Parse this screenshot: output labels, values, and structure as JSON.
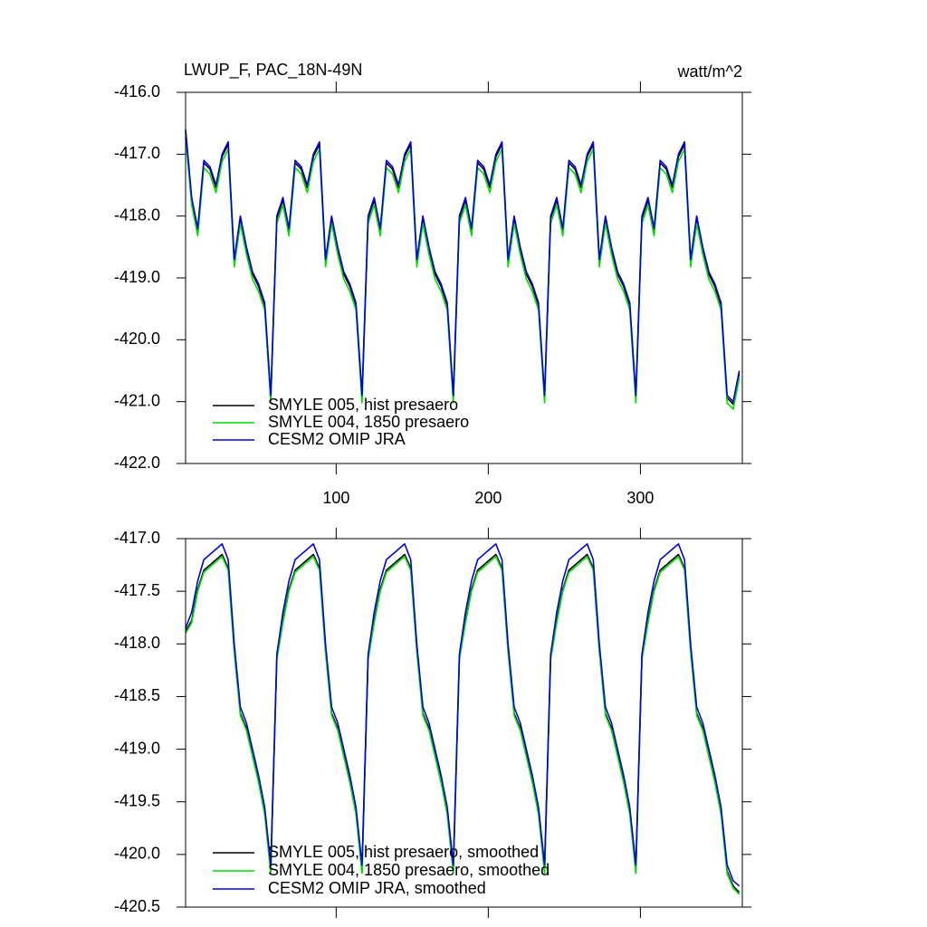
{
  "chart_data": [
    {
      "type": "line",
      "title": "LWUP_F, PAC_18N-49N",
      "units": "watt/m^2",
      "x": [
        1,
        5,
        9,
        13,
        17,
        21,
        25,
        29,
        33,
        37,
        41,
        45,
        49,
        53,
        57,
        61,
        65,
        69,
        73,
        77,
        81,
        85,
        89,
        93,
        97,
        101,
        105,
        109,
        113,
        117,
        121,
        125,
        129,
        133,
        137,
        141,
        145,
        149,
        153,
        157,
        161,
        165,
        169,
        173,
        177,
        181,
        185,
        189,
        193,
        197,
        201,
        205,
        209,
        213,
        217,
        221,
        225,
        229,
        233,
        237,
        241,
        245,
        249,
        253,
        257,
        261,
        265,
        269,
        273,
        277,
        281,
        285,
        289,
        293,
        297,
        301,
        305,
        309,
        313,
        317,
        321,
        325,
        329,
        333,
        337,
        341,
        345,
        349,
        353,
        357,
        361,
        365
      ],
      "xlim": [
        1,
        367
      ],
      "xticks": [
        100,
        200,
        300
      ],
      "ylim": [
        -422,
        -416
      ],
      "yticks": [
        {
          "value": -422,
          "label": "-422.0"
        },
        {
          "value": -421,
          "label": "-421.0"
        },
        {
          "value": -420,
          "label": "-420.0"
        },
        {
          "value": -419,
          "label": "-419.0"
        },
        {
          "value": -418,
          "label": "-418.0"
        },
        {
          "value": -417,
          "label": "-417.0"
        },
        {
          "value": -416,
          "label": "-416.0"
        }
      ],
      "series": [
        {
          "name": "SMYLE 005, hist presaero",
          "color": "#000000",
          "values": [
            -416.64,
            -417.74,
            -418.24,
            -417.14,
            -417.24,
            -417.54,
            -417.04,
            -416.84,
            -418.74,
            -418.04,
            -418.54,
            -418.94,
            -419.14,
            -419.44,
            -420.94,
            -418.04,
            -417.74,
            -418.24,
            -417.14,
            -417.24,
            -417.54,
            -417.04,
            -416.84,
            -418.74,
            -418.04,
            -418.54,
            -418.94,
            -419.14,
            -419.44,
            -420.94,
            -418.04,
            -417.74,
            -418.24,
            -417.14,
            -417.24,
            -417.54,
            -417.04,
            -416.84,
            -418.74,
            -418.04,
            -418.54,
            -418.94,
            -419.14,
            -419.44,
            -420.94,
            -418.04,
            -417.74,
            -418.24,
            -417.14,
            -417.24,
            -417.54,
            -417.04,
            -416.84,
            -418.74,
            -418.04,
            -418.54,
            -418.94,
            -419.14,
            -419.44,
            -420.94,
            -418.04,
            -417.74,
            -418.24,
            -417.14,
            -417.24,
            -417.54,
            -417.04,
            -416.84,
            -418.74,
            -418.04,
            -418.54,
            -418.94,
            -419.14,
            -419.44,
            -420.94,
            -418.04,
            -417.74,
            -418.24,
            -417.14,
            -417.24,
            -417.54,
            -417.04,
            -416.84,
            -418.74,
            -418.04,
            -418.54,
            -418.94,
            -419.14,
            -419.44,
            -420.94,
            -421.04,
            -420.54
          ]
        },
        {
          "name": "SMYLE 004, 1850 presaero",
          "color": "#00dd00",
          "values": [
            -416.72,
            -417.82,
            -418.32,
            -417.22,
            -417.32,
            -417.62,
            -417.12,
            -416.92,
            -418.82,
            -418.12,
            -418.62,
            -419.02,
            -419.22,
            -419.52,
            -421.02,
            -418.12,
            -417.82,
            -418.32,
            -417.22,
            -417.32,
            -417.62,
            -417.12,
            -416.92,
            -418.82,
            -418.12,
            -418.62,
            -419.02,
            -419.22,
            -419.52,
            -421.02,
            -418.12,
            -417.82,
            -418.32,
            -417.22,
            -417.32,
            -417.62,
            -417.12,
            -416.92,
            -418.82,
            -418.12,
            -418.62,
            -419.02,
            -419.22,
            -419.52,
            -421.02,
            -418.12,
            -417.82,
            -418.32,
            -417.22,
            -417.32,
            -417.62,
            -417.12,
            -416.92,
            -418.82,
            -418.12,
            -418.62,
            -419.02,
            -419.22,
            -419.52,
            -421.02,
            -418.12,
            -417.82,
            -418.32,
            -417.22,
            -417.32,
            -417.62,
            -417.12,
            -416.92,
            -418.82,
            -418.12,
            -418.62,
            -419.02,
            -419.22,
            -419.52,
            -421.02,
            -418.12,
            -417.82,
            -418.32,
            -417.22,
            -417.32,
            -417.62,
            -417.12,
            -416.92,
            -418.82,
            -418.12,
            -418.62,
            -419.02,
            -419.22,
            -419.52,
            -421.02,
            -421.12,
            -420.62
          ]
        },
        {
          "name": "CESM2 OMIP JRA",
          "color": "#0000dd",
          "values": [
            -416.6,
            -417.7,
            -418.2,
            -417.1,
            -417.2,
            -417.5,
            -417.0,
            -416.8,
            -418.7,
            -418.0,
            -418.5,
            -418.9,
            -419.1,
            -419.4,
            -420.9,
            -418.0,
            -417.7,
            -418.2,
            -417.1,
            -417.2,
            -417.5,
            -417.0,
            -416.8,
            -418.7,
            -418.0,
            -418.5,
            -418.9,
            -419.1,
            -419.4,
            -420.9,
            -418.0,
            -417.7,
            -418.2,
            -417.1,
            -417.2,
            -417.5,
            -417.0,
            -416.8,
            -418.7,
            -418.0,
            -418.5,
            -418.9,
            -419.1,
            -419.4,
            -420.9,
            -418.0,
            -417.7,
            -418.2,
            -417.1,
            -417.2,
            -417.5,
            -417.0,
            -416.8,
            -418.7,
            -418.0,
            -418.5,
            -418.9,
            -419.1,
            -419.4,
            -420.9,
            -418.0,
            -417.7,
            -418.2,
            -417.1,
            -417.2,
            -417.5,
            -417.0,
            -416.8,
            -418.7,
            -418.0,
            -418.5,
            -418.9,
            -419.1,
            -419.4,
            -420.9,
            -418.0,
            -417.7,
            -418.2,
            -417.1,
            -417.2,
            -417.5,
            -417.0,
            -416.8,
            -418.7,
            -418.0,
            -418.5,
            -418.9,
            -419.1,
            -419.4,
            -420.9,
            -421.0,
            -420.5
          ]
        }
      ]
    },
    {
      "type": "line",
      "x": [
        1,
        5,
        9,
        13,
        17,
        21,
        25,
        29,
        33,
        37,
        41,
        45,
        49,
        53,
        57,
        61,
        65,
        69,
        73,
        77,
        81,
        85,
        89,
        93,
        97,
        101,
        105,
        109,
        113,
        117,
        121,
        125,
        129,
        133,
        137,
        141,
        145,
        149,
        153,
        157,
        161,
        165,
        169,
        173,
        177,
        181,
        185,
        189,
        193,
        197,
        201,
        205,
        209,
        213,
        217,
        221,
        225,
        229,
        233,
        237,
        241,
        245,
        249,
        253,
        257,
        261,
        265,
        269,
        273,
        277,
        281,
        285,
        289,
        293,
        297,
        301,
        305,
        309,
        313,
        317,
        321,
        325,
        329,
        333,
        337,
        341,
        345,
        349,
        353,
        357,
        361,
        365
      ],
      "xlim": [
        1,
        367
      ],
      "xticks": [
        100,
        200,
        300
      ],
      "ylim": [
        -420.5,
        -417.0
      ],
      "yticks": [
        -420.5,
        {
          "value": -420,
          "label": "-420.0"
        },
        -419.5,
        {
          "value": -419,
          "label": "-419.0"
        },
        -418.5,
        {
          "value": -418,
          "label": "-418.0"
        },
        -417.5,
        {
          "value": -417,
          "label": "-417.0"
        }
      ],
      "series": [
        {
          "name": "SMYLE 005, hist presaero, smoothed",
          "color": "#000000",
          "values": [
            -417.88,
            -417.78,
            -417.48,
            -417.3,
            -417.25,
            -417.2,
            -417.15,
            -417.28,
            -418.06,
            -418.66,
            -418.8,
            -419.05,
            -419.3,
            -419.6,
            -420.16,
            -418.13,
            -417.78,
            -417.48,
            -417.3,
            -417.25,
            -417.2,
            -417.15,
            -417.28,
            -418.06,
            -418.66,
            -418.8,
            -419.05,
            -419.3,
            -419.6,
            -420.16,
            -418.13,
            -417.78,
            -417.48,
            -417.3,
            -417.25,
            -417.2,
            -417.15,
            -417.28,
            -418.06,
            -418.66,
            -418.8,
            -419.05,
            -419.3,
            -419.6,
            -420.16,
            -418.13,
            -417.78,
            -417.48,
            -417.3,
            -417.25,
            -417.2,
            -417.15,
            -417.28,
            -418.06,
            -418.66,
            -418.8,
            -419.05,
            -419.3,
            -419.6,
            -420.16,
            -418.13,
            -417.78,
            -417.48,
            -417.3,
            -417.25,
            -417.2,
            -417.15,
            -417.28,
            -418.06,
            -418.66,
            -418.8,
            -419.05,
            -419.3,
            -419.6,
            -420.16,
            -418.13,
            -417.78,
            -417.48,
            -417.3,
            -417.25,
            -417.2,
            -417.15,
            -417.28,
            -418.06,
            -418.66,
            -418.8,
            -419.05,
            -419.3,
            -419.6,
            -420.16,
            -420.3,
            -420.36
          ]
        },
        {
          "name": "SMYLE 004, 1850 presaero, smoothed",
          "color": "#00dd00",
          "values": [
            -417.9,
            -417.8,
            -417.5,
            -417.32,
            -417.27,
            -417.22,
            -417.17,
            -417.3,
            -418.08,
            -418.68,
            -418.82,
            -419.07,
            -419.32,
            -419.62,
            -420.18,
            -418.15,
            -417.8,
            -417.5,
            -417.32,
            -417.27,
            -417.22,
            -417.17,
            -417.3,
            -418.08,
            -418.68,
            -418.82,
            -419.07,
            -419.32,
            -419.62,
            -420.18,
            -418.15,
            -417.8,
            -417.5,
            -417.32,
            -417.27,
            -417.22,
            -417.17,
            -417.3,
            -418.08,
            -418.68,
            -418.82,
            -419.07,
            -419.32,
            -419.62,
            -420.18,
            -418.15,
            -417.8,
            -417.5,
            -417.32,
            -417.27,
            -417.22,
            -417.17,
            -417.3,
            -418.08,
            -418.68,
            -418.82,
            -419.07,
            -419.32,
            -419.62,
            -420.18,
            -418.15,
            -417.8,
            -417.5,
            -417.32,
            -417.27,
            -417.22,
            -417.17,
            -417.3,
            -418.08,
            -418.68,
            -418.82,
            -419.07,
            -419.32,
            -419.62,
            -420.18,
            -418.15,
            -417.8,
            -417.5,
            -417.32,
            -417.27,
            -417.22,
            -417.17,
            -417.3,
            -418.08,
            -418.68,
            -418.82,
            -419.07,
            -419.32,
            -419.62,
            -420.18,
            -420.32,
            -420.38
          ]
        },
        {
          "name": "CESM2 OMIP JRA, smoothed",
          "color": "#0000dd",
          "values": [
            -417.85,
            -417.7,
            -417.4,
            -417.2,
            -417.15,
            -417.1,
            -417.05,
            -417.2,
            -418.0,
            -418.6,
            -418.75,
            -419.0,
            -419.25,
            -419.55,
            -420.1,
            -418.1,
            -417.7,
            -417.4,
            -417.2,
            -417.15,
            -417.1,
            -417.05,
            -417.2,
            -418.0,
            -418.6,
            -418.75,
            -419.0,
            -419.25,
            -419.55,
            -420.1,
            -418.1,
            -417.7,
            -417.4,
            -417.2,
            -417.15,
            -417.1,
            -417.05,
            -417.2,
            -418.0,
            -418.6,
            -418.75,
            -419.0,
            -419.25,
            -419.55,
            -420.1,
            -418.1,
            -417.7,
            -417.4,
            -417.2,
            -417.15,
            -417.1,
            -417.05,
            -417.2,
            -418.0,
            -418.6,
            -418.75,
            -419.0,
            -419.25,
            -419.55,
            -420.1,
            -418.1,
            -417.7,
            -417.4,
            -417.2,
            -417.15,
            -417.1,
            -417.05,
            -417.2,
            -418.0,
            -418.6,
            -418.75,
            -419.0,
            -419.25,
            -419.55,
            -420.1,
            -418.1,
            -417.7,
            -417.4,
            -417.2,
            -417.15,
            -417.1,
            -417.05,
            -417.2,
            -418.0,
            -418.6,
            -418.75,
            -419.0,
            -419.25,
            -419.55,
            -420.1,
            -420.25,
            -420.3
          ]
        }
      ]
    }
  ]
}
